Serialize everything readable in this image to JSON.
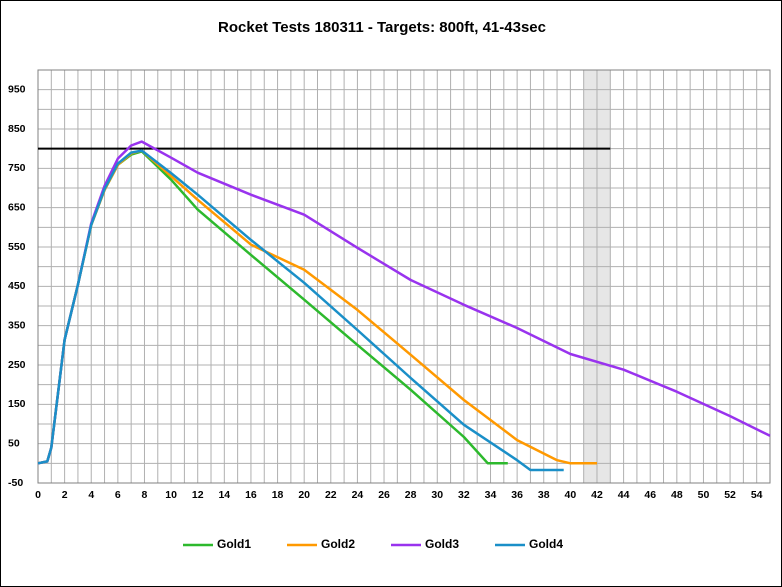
{
  "chart_data": {
    "type": "line",
    "title": "Rocket Tests 180311 - Targets: 800ft, 41-43sec",
    "xlim": [
      0,
      55
    ],
    "ylim": [
      -50,
      1000
    ],
    "xticks": [
      0,
      2,
      4,
      6,
      8,
      10,
      12,
      14,
      16,
      18,
      20,
      22,
      24,
      26,
      28,
      30,
      32,
      34,
      36,
      38,
      40,
      42,
      44,
      46,
      48,
      50,
      52,
      54
    ],
    "yticks": [
      -50,
      50,
      150,
      250,
      350,
      450,
      550,
      650,
      750,
      850,
      950
    ],
    "grid": true,
    "minor_grid": true,
    "reference_line": {
      "y": 800,
      "x": [
        0,
        43
      ],
      "color": "#000000"
    },
    "shaded_region": {
      "x": [
        41,
        43
      ],
      "color": "#e6e6e6"
    },
    "legend": "bottom",
    "series": [
      {
        "name": "Gold1",
        "color": "#2db92d",
        "x": [
          0,
          0.7,
          1,
          2,
          3,
          4,
          5,
          6,
          7,
          7.8,
          10,
          12,
          16,
          20,
          24,
          28,
          32,
          33.8,
          35.3
        ],
        "values": [
          0,
          5,
          40,
          314,
          454,
          606,
          695,
          759,
          785,
          793,
          721,
          645,
          530,
          416,
          301,
          187,
          67,
          0,
          0
        ]
      },
      {
        "name": "Gold2",
        "color": "#ff9900",
        "x": [
          0,
          0.7,
          1,
          2,
          3,
          4,
          5,
          6,
          7,
          7.8,
          10,
          12,
          16,
          20,
          24,
          28,
          32,
          36,
          39,
          40,
          42
        ],
        "values": [
          0,
          5,
          40,
          314,
          454,
          606,
          695,
          759,
          788,
          795,
          730,
          670,
          556,
          492,
          390,
          276,
          161,
          59,
          8,
          0,
          0
        ]
      },
      {
        "name": "Gold3",
        "color": "#9933ee",
        "x": [
          0,
          0.7,
          1,
          2,
          3,
          4,
          5,
          6,
          7,
          7.8,
          10,
          12,
          16,
          20,
          24,
          28,
          32,
          36,
          40,
          44,
          48,
          52,
          55
        ],
        "values": [
          0,
          5,
          40,
          314,
          454,
          610,
          705,
          775,
          808,
          818,
          777,
          739,
          683,
          632,
          548,
          466,
          403,
          344,
          278,
          238,
          182,
          120,
          70
        ]
      },
      {
        "name": "Gold4",
        "color": "#1a8fc8",
        "x": [
          0,
          0.7,
          1,
          2,
          3,
          4,
          5,
          6,
          7,
          7.8,
          10,
          12,
          16,
          20,
          24,
          28,
          32,
          36,
          37,
          39.5
        ],
        "values": [
          0,
          5,
          40,
          314,
          454,
          606,
          697,
          762,
          790,
          795,
          738,
          683,
          568,
          459,
          339,
          217,
          98,
          8,
          -17,
          -17
        ]
      }
    ]
  }
}
